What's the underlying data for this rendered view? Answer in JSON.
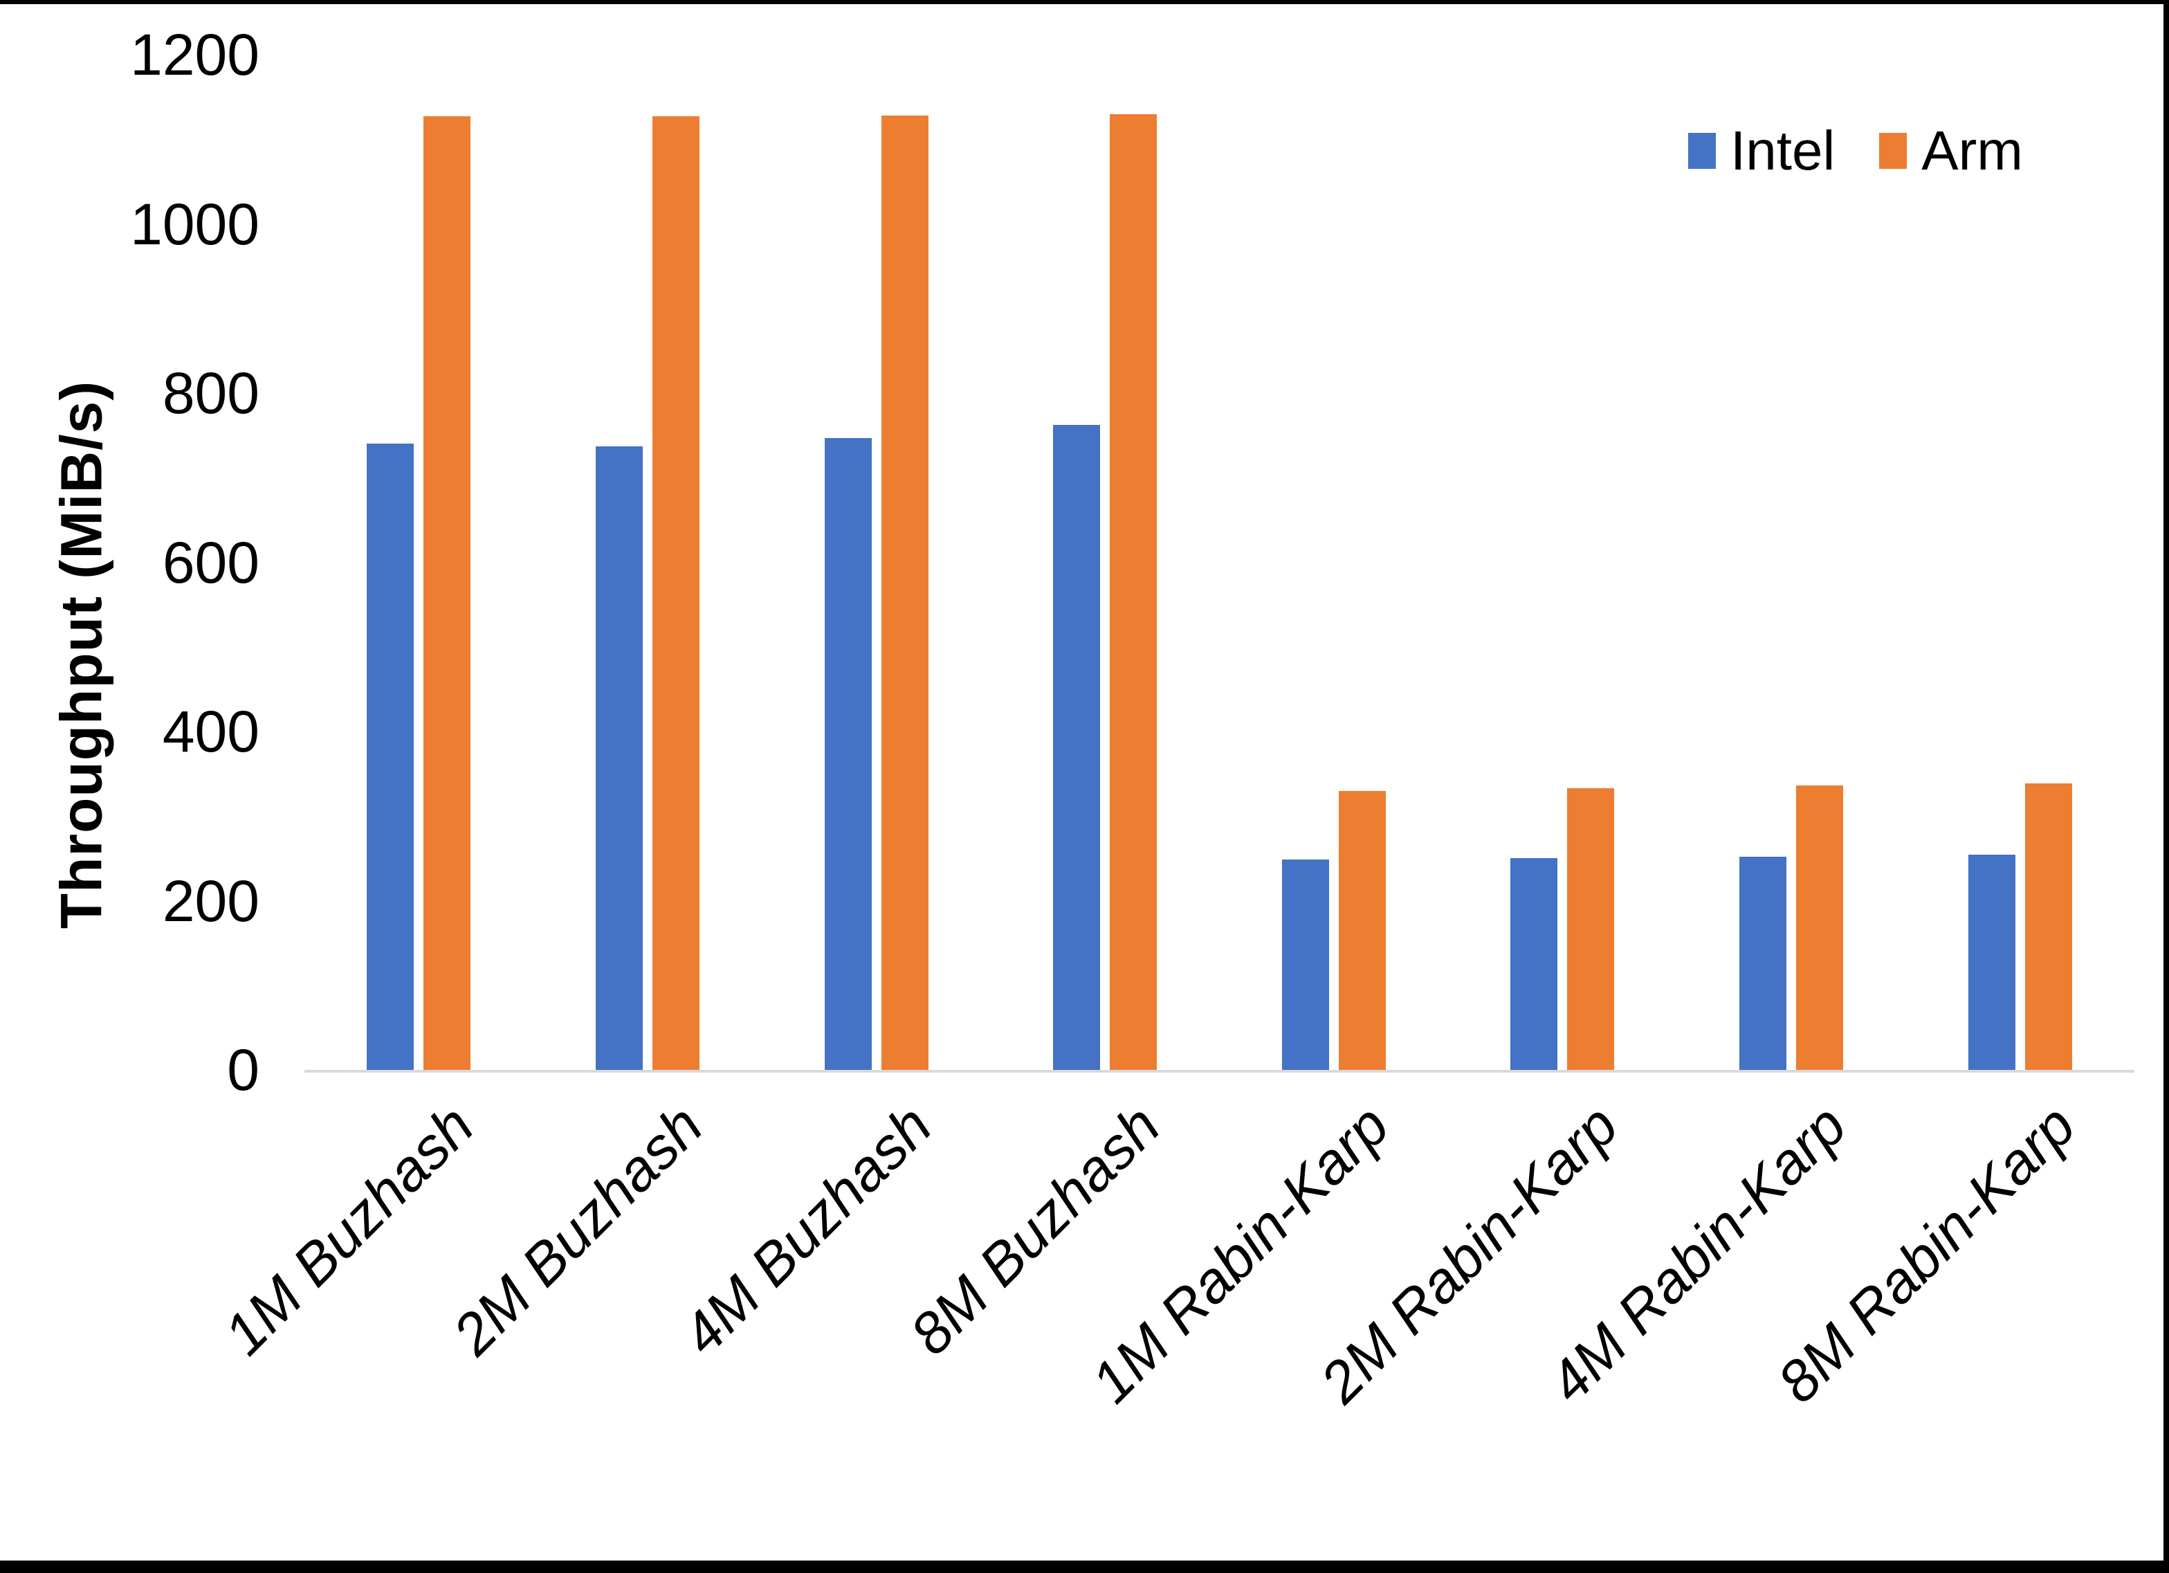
{
  "chart_data": {
    "type": "bar",
    "title": "",
    "xlabel": "",
    "ylabel": "Throughput (MiB/s)",
    "ylim": [
      0,
      1200
    ],
    "yticks": [
      0,
      200,
      400,
      600,
      800,
      1000,
      1200
    ],
    "grid": false,
    "legend_position": "top-right",
    "categories": [
      "1M Buzhash",
      "2M Buzhash",
      "4M Buzhash",
      "8M Buzhash",
      "1M Rabin-Karp",
      "2M Rabin-Karp",
      "4M Rabin-Karp",
      "8M Rabin-Karp"
    ],
    "series": [
      {
        "name": "Intel",
        "color": "#4472C4",
        "values": [
          740,
          737,
          747,
          762,
          249,
          250,
          252,
          254
        ]
      },
      {
        "name": "Arm",
        "color": "#ED7D31",
        "values": [
          1127,
          1127,
          1128,
          1130,
          330,
          333,
          336,
          339
        ]
      }
    ]
  },
  "colors": {
    "axis_line": "#d9d9d9",
    "text": "#000000",
    "background": "#ffffff",
    "border": "#000000"
  }
}
